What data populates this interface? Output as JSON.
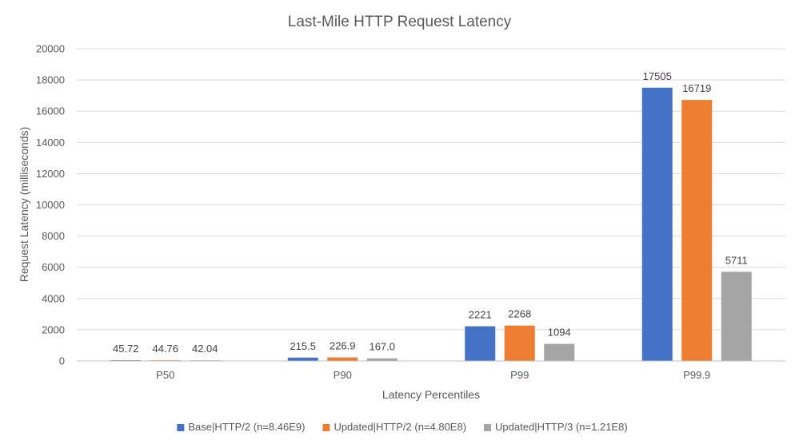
{
  "chart_data": {
    "type": "bar",
    "title": "Last-Mile HTTP Request Latency",
    "xlabel": "Latency Percentiles",
    "ylabel": "Request Latency (milliseconds)",
    "categories": [
      "P50",
      "P90",
      "P99",
      "P99.9"
    ],
    "ylim": [
      0,
      20000
    ],
    "yticks": [
      0,
      2000,
      4000,
      6000,
      8000,
      10000,
      12000,
      14000,
      16000,
      18000,
      20000
    ],
    "grid": true,
    "legend_position": "bottom",
    "series": [
      {
        "name": "Base|HTTP/2 (n=8.46E9)",
        "color": "#4472c4",
        "values": [
          45.72,
          215.5,
          2221,
          17505
        ],
        "labels": [
          "45.72",
          "215.5",
          "2221",
          "17505"
        ]
      },
      {
        "name": "Updated|HTTP/2 (n=4.80E8)",
        "color": "#ed7d31",
        "values": [
          44.76,
          226.9,
          2268,
          16719
        ],
        "labels": [
          "44.76",
          "226.9",
          "2268",
          "16719"
        ]
      },
      {
        "name": "Updated|HTTP/3 (n=1.21E8)",
        "color": "#a5a5a5",
        "values": [
          42.04,
          167.0,
          1094,
          5711
        ],
        "labels": [
          "42.04",
          "167.0",
          "1094",
          "5711"
        ]
      }
    ]
  }
}
